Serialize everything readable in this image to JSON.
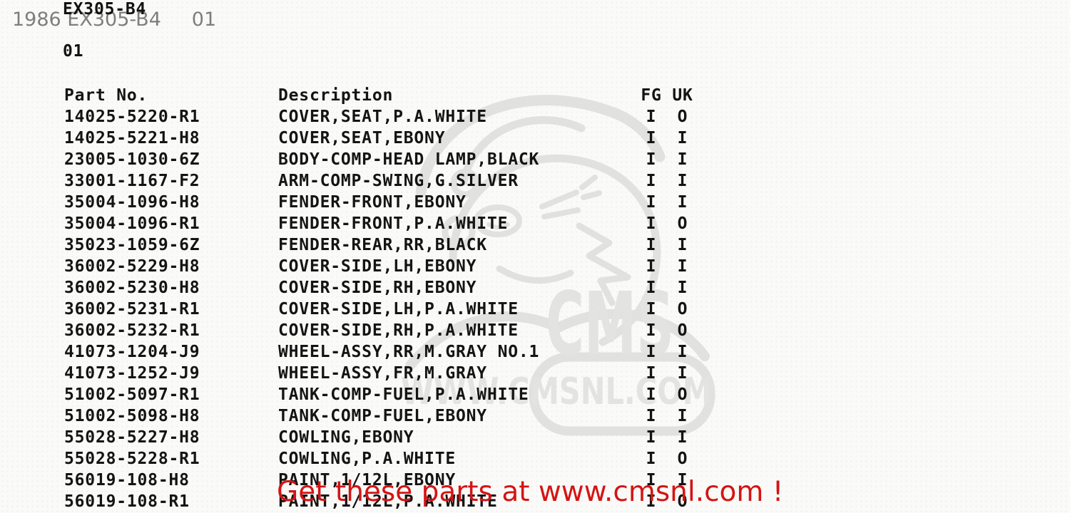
{
  "header": {
    "fiche_code": "EX305-B4",
    "overlay_title": "1986 EX305-B4     01",
    "page_number": "01"
  },
  "table": {
    "columns": {
      "part_no": "Part No.",
      "description": "Description",
      "fg": "FG",
      "uk": "UK"
    },
    "rows": [
      {
        "part_no": "14025-5220-R1",
        "description": "COVER,SEAT,P.A.WHITE",
        "fg": "I",
        "uk": "O"
      },
      {
        "part_no": "14025-5221-H8",
        "description": "COVER,SEAT,EBONY",
        "fg": "I",
        "uk": "I"
      },
      {
        "part_no": "23005-1030-6Z",
        "description": "BODY-COMP-HEAD LAMP,BLACK",
        "fg": "I",
        "uk": "I"
      },
      {
        "part_no": "33001-1167-F2",
        "description": "ARM-COMP-SWING,G.SILVER",
        "fg": "I",
        "uk": "I"
      },
      {
        "part_no": "35004-1096-H8",
        "description": "FENDER-FRONT,EBONY",
        "fg": "I",
        "uk": "I"
      },
      {
        "part_no": "35004-1096-R1",
        "description": "FENDER-FRONT,P.A.WHITE",
        "fg": "I",
        "uk": "O"
      },
      {
        "part_no": "35023-1059-6Z",
        "description": "FENDER-REAR,RR,BLACK",
        "fg": "I",
        "uk": "I"
      },
      {
        "part_no": "36002-5229-H8",
        "description": "COVER-SIDE,LH,EBONY",
        "fg": "I",
        "uk": "I"
      },
      {
        "part_no": "36002-5230-H8",
        "description": "COVER-SIDE,RH,EBONY",
        "fg": "I",
        "uk": "I"
      },
      {
        "part_no": "36002-5231-R1",
        "description": "COVER-SIDE,LH,P.A.WHITE",
        "fg": "I",
        "uk": "O"
      },
      {
        "part_no": "36002-5232-R1",
        "description": "COVER-SIDE,RH,P.A.WHITE",
        "fg": "I",
        "uk": "O"
      },
      {
        "part_no": "41073-1204-J9",
        "description": "WHEEL-ASSY,RR,M.GRAY NO.1",
        "fg": "I",
        "uk": "I"
      },
      {
        "part_no": "41073-1252-J9",
        "description": "WHEEL-ASSY,FR,M.GRAY",
        "fg": "I",
        "uk": "I"
      },
      {
        "part_no": "51002-5097-R1",
        "description": "TANK-COMP-FUEL,P.A.WHITE",
        "fg": "I",
        "uk": "O"
      },
      {
        "part_no": "51002-5098-H8",
        "description": "TANK-COMP-FUEL,EBONY",
        "fg": "I",
        "uk": "I"
      },
      {
        "part_no": "55028-5227-H8",
        "description": "COWLING,EBONY",
        "fg": "I",
        "uk": "I"
      },
      {
        "part_no": "55028-5228-R1",
        "description": "COWLING,P.A.WHITE",
        "fg": "I",
        "uk": "O"
      },
      {
        "part_no": "56019-108-H8",
        "description": "PAINT,1/12L,EBONY",
        "fg": "I",
        "uk": "I"
      },
      {
        "part_no": "56019-108-R1",
        "description": "PAINT,1/12L,P.A.WHITE",
        "fg": "I",
        "uk": "O"
      }
    ]
  },
  "watermark": {
    "brand": "CMS",
    "url": "WWW.CMSNL.COM",
    "color": "#e1e1df"
  },
  "promo": {
    "text": "Get these parts at www.cmsnl.com !",
    "color": "#d41414"
  },
  "colors": {
    "background": "#fafaf8",
    "table_text": "#141414",
    "overlay_gray": "#7e7e7e"
  }
}
